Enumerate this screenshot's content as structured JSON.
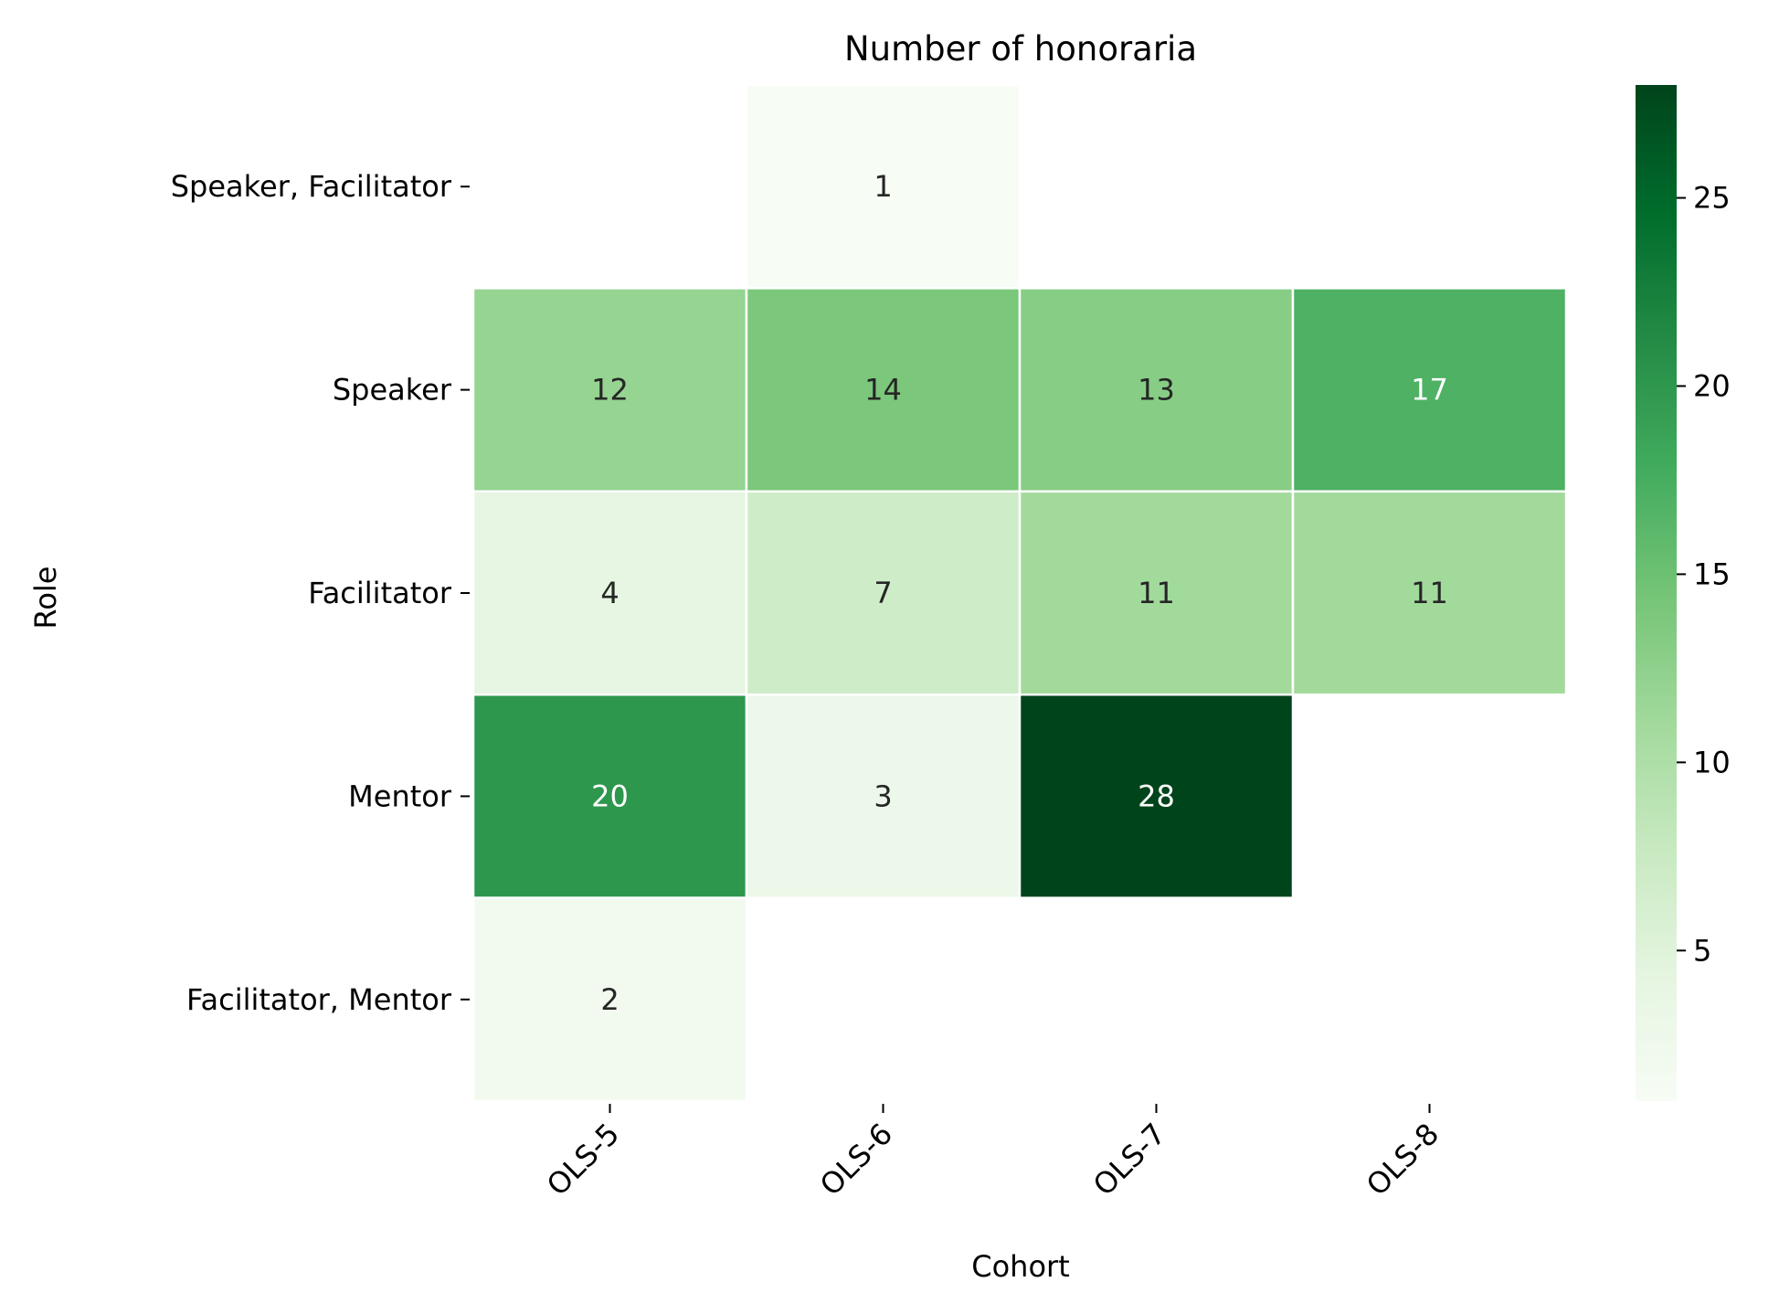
{
  "chart_data": {
    "type": "heatmap",
    "title": "Number of honoraria",
    "xlabel": "Cohort",
    "ylabel": "Role",
    "x_categories": [
      "OLS-5",
      "OLS-6",
      "OLS-7",
      "OLS-8"
    ],
    "y_categories": [
      "Speaker, Facilitator",
      "Speaker",
      "Facilitator",
      "Mentor",
      "Facilitator, Mentor"
    ],
    "values": [
      [
        null,
        1,
        null,
        null
      ],
      [
        12,
        14,
        13,
        17
      ],
      [
        4,
        7,
        11,
        11
      ],
      [
        20,
        3,
        28,
        null
      ],
      [
        2,
        null,
        null,
        null
      ]
    ],
    "colormap": "Greens",
    "color_range": [
      1,
      28
    ],
    "colorbar_ticks": [
      5,
      10,
      15,
      20,
      25
    ],
    "grid": false,
    "legend": "colorbar-right"
  }
}
